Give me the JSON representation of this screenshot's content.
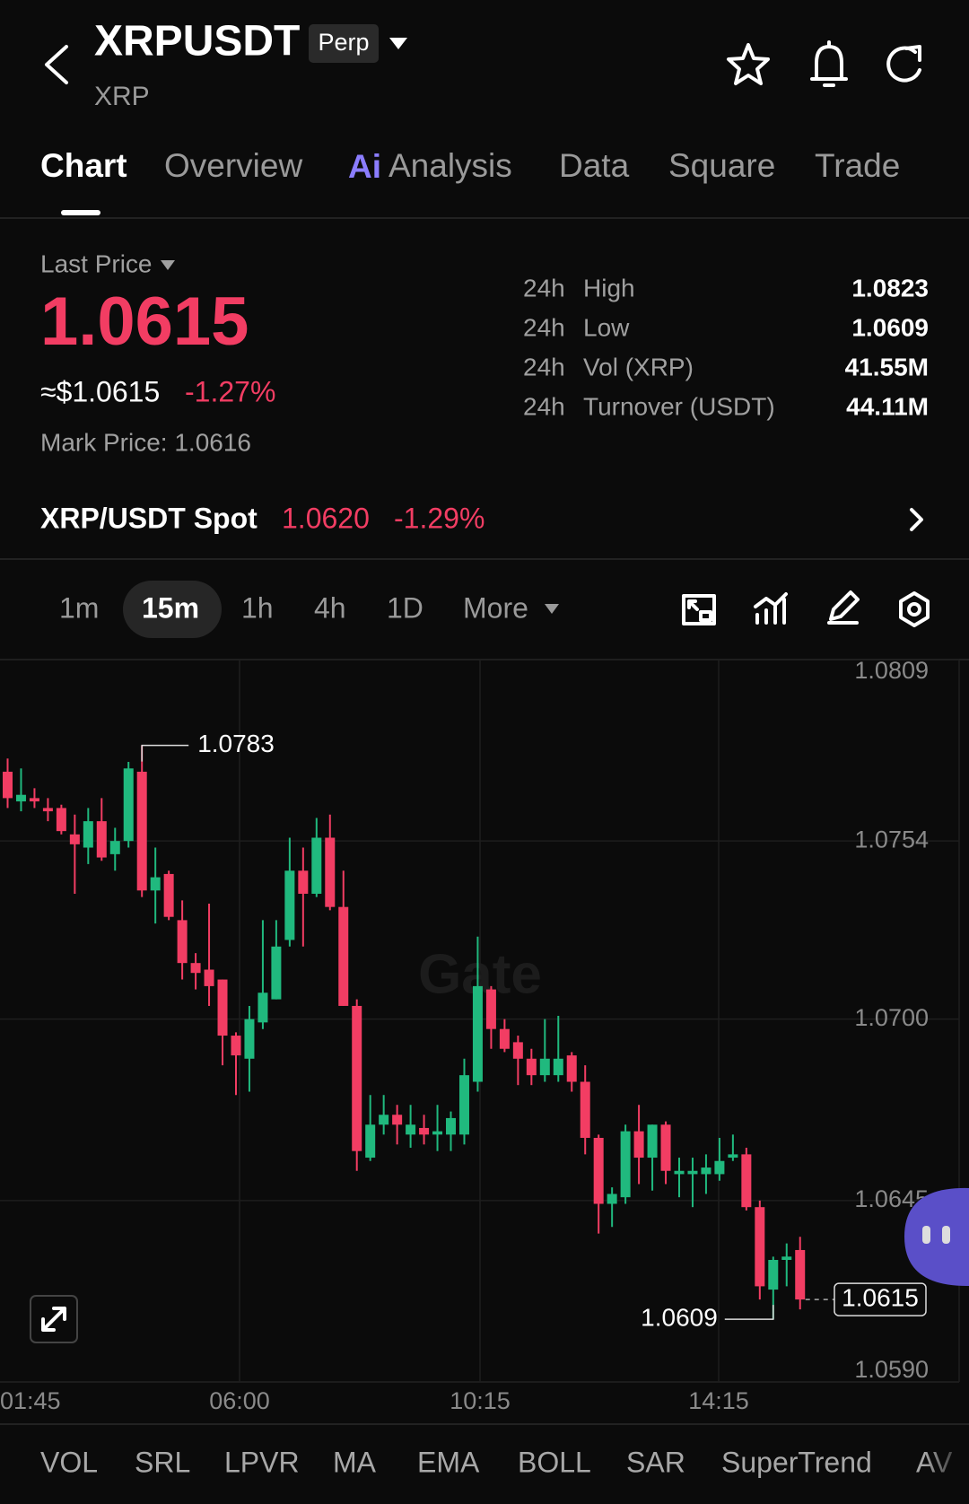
{
  "header": {
    "symbol": "XRPUSDT",
    "badge": "Perp",
    "base": "XRP"
  },
  "tabs": [
    "Chart",
    "Overview",
    "Analysis",
    "Data",
    "Square",
    "Trade"
  ],
  "analysis_badge": "Ai",
  "price": {
    "last_label": "Last Price",
    "last": "1.0615",
    "usd": "≈$1.0615",
    "change": "-1.27%",
    "mark": "Mark Price: 1.0616"
  },
  "stats": [
    [
      "24h",
      "High",
      "1.0823"
    ],
    [
      "24h",
      "Low",
      "1.0609"
    ],
    [
      "24h",
      "Vol (XRP)",
      "41.55M"
    ],
    [
      "24h",
      "Turnover (USDT)",
      "44.11M"
    ]
  ],
  "spot": {
    "label": "XRP/USDT Spot",
    "price": "1.0620",
    "change": "-1.29%"
  },
  "intervals": [
    "1m",
    "15m",
    "1h",
    "4h",
    "1D",
    "More"
  ],
  "chart_data": {
    "type": "candlestick",
    "watermark": "Gate",
    "up_color": "#20b97e",
    "down_color": "#f23d63",
    "open": [
      1.0775,
      1.0766,
      1.0767,
      1.0764,
      1.0764,
      1.0756,
      1.0752,
      1.076,
      1.075,
      1.0754,
      1.0775,
      1.0739,
      1.0744,
      1.073,
      1.0717,
      1.0715,
      1.0712,
      1.0695,
      1.0688,
      1.0699,
      1.0706,
      1.0724,
      1.0745,
      1.0738,
      1.0755,
      1.0734,
      1.0704,
      1.0658,
      1.0668,
      1.0671,
      1.0665,
      1.0667,
      1.0665,
      1.0665,
      1.0665,
      1.0681,
      1.0709,
      1.0697,
      1.0693,
      1.0688,
      1.0683,
      1.0683,
      1.0689,
      1.0681,
      1.0664,
      1.0644,
      1.0646,
      1.0666,
      1.0658,
      1.0668,
      1.0653,
      1.0653,
      1.0653,
      1.0653,
      1.0658,
      1.0659,
      1.0643,
      1.0618,
      1.0627,
      1.063
    ],
    "high": [
      1.0779,
      1.0776,
      1.077,
      1.0767,
      1.0765,
      1.0762,
      1.0764,
      1.0767,
      1.0758,
      1.0778,
      1.0783,
      1.0752,
      1.0745,
      1.0736,
      1.072,
      1.0735,
      1.0712,
      1.0696,
      1.0704,
      1.073,
      1.073,
      1.0755,
      1.0752,
      1.0761,
      1.0762,
      1.0745,
      1.0706,
      1.0677,
      1.0677,
      1.0674,
      1.0674,
      1.0671,
      1.0674,
      1.0672,
      1.0688,
      1.0725,
      1.071,
      1.07,
      1.0695,
      1.0691,
      1.07,
      1.0701,
      1.069,
      1.0686,
      1.0665,
      1.0649,
      1.0668,
      1.0674,
      1.0668,
      1.0669,
      1.0658,
      1.0658,
      1.0659,
      1.0664,
      1.0665,
      1.0661,
      1.0645,
      1.0628,
      1.0632,
      1.0634
    ],
    "low": [
      1.0764,
      1.0763,
      1.0764,
      1.076,
      1.0756,
      1.0738,
      1.0747,
      1.0748,
      1.0745,
      1.0752,
      1.0737,
      1.0729,
      1.073,
      1.0712,
      1.0709,
      1.0704,
      1.0686,
      1.0677,
      1.0678,
      1.0697,
      1.0706,
      1.0722,
      1.0722,
      1.0737,
      1.0733,
      1.0704,
      1.0654,
      1.0657,
      1.0665,
      1.0662,
      1.0661,
      1.0662,
      1.066,
      1.066,
      1.0662,
      1.0678,
      1.0691,
      1.069,
      1.068,
      1.068,
      1.0681,
      1.0681,
      1.0678,
      1.0659,
      1.0635,
      1.0637,
      1.0644,
      1.065,
      1.0648,
      1.065,
      1.0646,
      1.0643,
      1.0647,
      1.0651,
      1.0657,
      1.0642,
      1.0615,
      1.0609,
      1.0619,
      1.0612
    ],
    "close": [
      1.0767,
      1.0768,
      1.0766,
      1.0763,
      1.0757,
      1.0753,
      1.076,
      1.0749,
      1.0754,
      1.0776,
      1.0739,
      1.0743,
      1.0731,
      1.0717,
      1.0714,
      1.071,
      1.0695,
      1.0689,
      1.07,
      1.0708,
      1.0722,
      1.0745,
      1.0738,
      1.0755,
      1.0734,
      1.0704,
      1.066,
      1.0668,
      1.0671,
      1.0668,
      1.0668,
      1.0665,
      1.0666,
      1.067,
      1.0683,
      1.071,
      1.0697,
      1.0691,
      1.0688,
      1.0683,
      1.0688,
      1.0688,
      1.0681,
      1.0664,
      1.0644,
      1.0647,
      1.0666,
      1.0658,
      1.0668,
      1.0654,
      1.0654,
      1.0654,
      1.0655,
      1.0657,
      1.0659,
      1.0643,
      1.0619,
      1.0627,
      1.0628,
      1.0615
    ],
    "ylim": [
      1.059,
      1.0809
    ],
    "yticks": [
      1.0809,
      1.0754,
      {
        "value": 1.07,
        "label": "1.0700"
      },
      1.0645,
      {
        "value": 1.059,
        "label": "1.0590"
      }
    ],
    "x_labels": [
      "01:45",
      "06:00",
      "10:15",
      "14:15"
    ],
    "high_marker": 1.0783,
    "low_marker": 1.0609,
    "last_marker": 1.0615,
    "grid": true
  },
  "indicators": [
    "VOL",
    "SRL",
    "LPVR",
    "MA",
    "EMA",
    "BOLL",
    "SAR",
    "SuperTrend",
    "AV"
  ]
}
